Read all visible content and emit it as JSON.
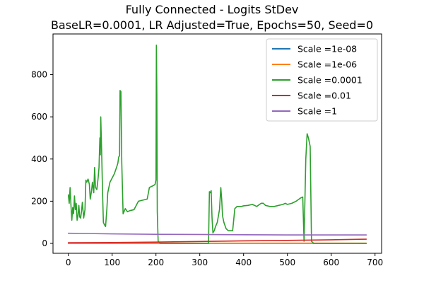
{
  "chart_data": {
    "type": "line",
    "title": "Fully Connected - Logits StDev",
    "subtitle": "BaseLR=0.0001, LR Adjusted=True, Epochs=50, Seed=0",
    "xlabel": "",
    "ylabel": "",
    "xlim": [
      -35,
      715
    ],
    "ylim": [
      -47,
      993
    ],
    "xticks": [
      0,
      100,
      200,
      300,
      400,
      500,
      600,
      700
    ],
    "yticks": [
      0,
      200,
      400,
      600,
      800
    ],
    "grid": false,
    "legend_position": "top-right",
    "series": [
      {
        "name": "Scale =1e-08",
        "color": "#1f77b4",
        "x": [
          0,
          680
        ],
        "y": [
          0,
          0
        ]
      },
      {
        "name": "Scale =1e-06",
        "color": "#ff7f0e",
        "x": [
          0,
          680
        ],
        "y": [
          1,
          1
        ]
      },
      {
        "name": "Scale =0.0001",
        "color": "#2ca02c",
        "x": [
          0,
          2,
          4,
          6,
          8,
          10,
          12,
          14,
          16,
          18,
          20,
          22,
          24,
          26,
          28,
          30,
          32,
          35,
          38,
          40,
          42,
          45,
          48,
          50,
          53,
          55,
          58,
          60,
          62,
          65,
          68,
          70,
          72,
          73,
          74,
          76,
          78,
          80,
          82,
          85,
          88,
          90,
          95,
          100,
          105,
          110,
          113,
          115,
          117,
          118,
          120,
          122,
          125,
          130,
          135,
          140,
          150,
          160,
          170,
          180,
          185,
          190,
          195,
          198,
          200,
          201,
          202,
          203,
          205,
          210,
          250,
          300,
          320,
          322,
          324,
          326,
          328,
          330,
          333,
          336,
          340,
          345,
          348,
          350,
          352,
          355,
          360,
          365,
          370,
          375,
          380,
          385,
          390,
          395,
          400,
          410,
          420,
          430,
          440,
          445,
          450,
          460,
          470,
          480,
          490,
          495,
          500,
          510,
          520,
          530,
          535,
          538,
          542,
          545,
          548,
          550,
          552,
          555,
          560,
          600,
          650,
          680
        ],
        "y": [
          230,
          190,
          265,
          180,
          110,
          170,
          140,
          225,
          160,
          190,
          110,
          130,
          180,
          125,
          120,
          150,
          195,
          120,
          160,
          300,
          290,
          305,
          280,
          210,
          250,
          290,
          240,
          360,
          265,
          255,
          310,
          360,
          500,
          420,
          600,
          440,
          250,
          100,
          90,
          80,
          165,
          240,
          290,
          310,
          330,
          360,
          380,
          410,
          415,
          725,
          720,
          380,
          140,
          165,
          150,
          155,
          160,
          200,
          205,
          210,
          265,
          270,
          275,
          280,
          300,
          940,
          700,
          150,
          10,
          0,
          0,
          0,
          0,
          245,
          240,
          250,
          120,
          50,
          60,
          80,
          100,
          160,
          265,
          210,
          130,
          100,
          70,
          60,
          60,
          60,
          165,
          175,
          175,
          175,
          178,
          180,
          185,
          175,
          190,
          190,
          180,
          175,
          175,
          180,
          185,
          190,
          185,
          190,
          200,
          215,
          220,
          10,
          400,
          520,
          500,
          480,
          460,
          10,
          0,
          0,
          0,
          0
        ]
      },
      {
        "name": "Scale =0.01",
        "color": "#d62728",
        "x": [
          0,
          100,
          200,
          300,
          400,
          500,
          600,
          680
        ],
        "y": [
          3,
          4,
          6,
          9,
          12,
          14,
          17,
          20
        ]
      },
      {
        "name": "Scale =1",
        "color": "#9467bd",
        "x": [
          0,
          100,
          200,
          300,
          400,
          500,
          600,
          680
        ],
        "y": [
          48,
          45,
          43,
          42,
          41,
          40,
          40,
          40
        ]
      }
    ]
  }
}
